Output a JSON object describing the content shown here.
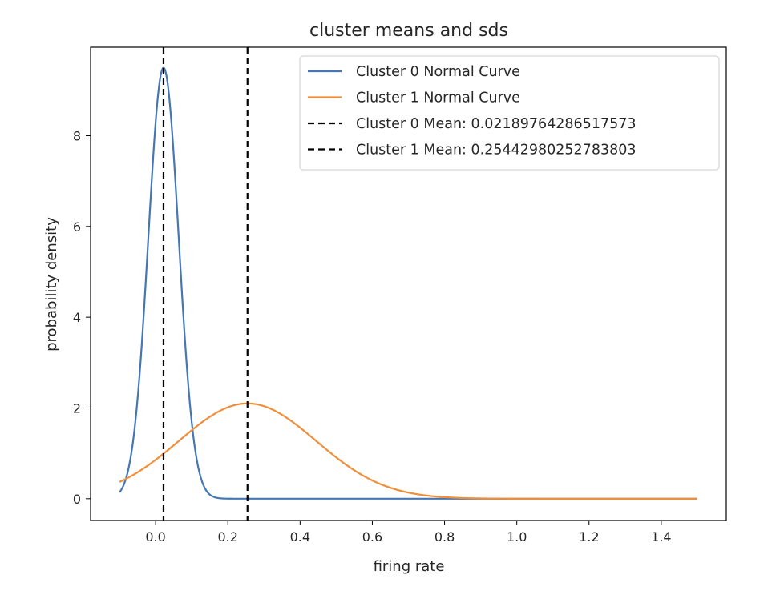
{
  "chart_data": {
    "type": "line",
    "title": "cluster means and sds",
    "xlabel": "firing rate",
    "ylabel": "probability density",
    "xlim": [
      -0.18,
      1.58
    ],
    "ylim": [
      -0.48,
      9.95
    ],
    "xticks": [
      0.0,
      0.2,
      0.4,
      0.6,
      0.8,
      1.0,
      1.2,
      1.4
    ],
    "xtick_labels": [
      "0.0",
      "0.2",
      "0.4",
      "0.6",
      "0.8",
      "1.0",
      "1.2",
      "1.4"
    ],
    "yticks": [
      0,
      2,
      4,
      6,
      8
    ],
    "ytick_labels": [
      "0",
      "2",
      "4",
      "6",
      "8"
    ],
    "grid": false,
    "legend_position": "top-right",
    "x_range": [
      -0.1,
      1.5
    ],
    "series": [
      {
        "name": "Cluster 0 Normal Curve",
        "kind": "normal",
        "mean": 0.02189764286517573,
        "sd": 0.042,
        "color": "#4477b4",
        "style": "solid"
      },
      {
        "name": "Cluster 1 Normal Curve",
        "kind": "normal",
        "mean": 0.25442980252783803,
        "sd": 0.19,
        "color": "#f08e39",
        "style": "solid"
      },
      {
        "name": "Cluster 0 Mean: 0.02189764286517573",
        "kind": "vline",
        "x": 0.02189764286517573,
        "color": "#000000",
        "style": "dashed"
      },
      {
        "name": "Cluster 1 Mean: 0.25442980252783803",
        "kind": "vline",
        "x": 0.25442980252783803,
        "color": "#000000",
        "style": "dashed"
      }
    ]
  }
}
